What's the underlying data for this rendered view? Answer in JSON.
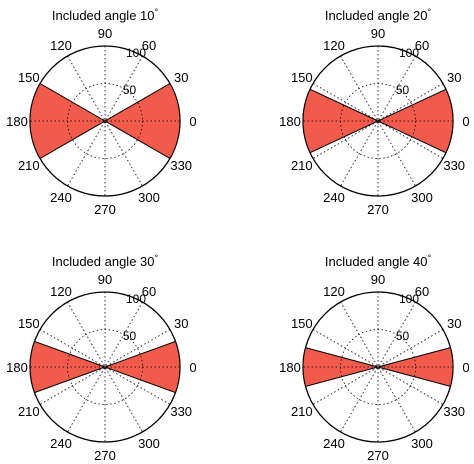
{
  "chart_data": [
    {
      "type": "polar-area",
      "title": "Included angle 10",
      "title_superscript": "°",
      "angle_ticks": [
        "0",
        "30",
        "60",
        "90",
        "120",
        "150",
        "180",
        "210",
        "240",
        "270",
        "300",
        "330"
      ],
      "radial_ticks": [
        "50",
        "100"
      ],
      "rlim": [
        0,
        100
      ],
      "grid": true,
      "fill_color": "#f25a4b",
      "half_width_deg": 30,
      "lobe_centers_deg": [
        0,
        180
      ],
      "values": [
        100,
        100
      ]
    },
    {
      "type": "polar-area",
      "title": "Included angle 20",
      "title_superscript": "°",
      "angle_ticks": [
        "0",
        "30",
        "60",
        "90",
        "120",
        "150",
        "180",
        "210",
        "240",
        "270",
        "300",
        "330"
      ],
      "radial_ticks": [
        "50",
        "100"
      ],
      "rlim": [
        0,
        100
      ],
      "grid": true,
      "fill_color": "#f25a4b",
      "half_width_deg": 25,
      "lobe_centers_deg": [
        0,
        180
      ],
      "values": [
        100,
        100
      ]
    },
    {
      "type": "polar-area",
      "title": "Included angle 30",
      "title_superscript": "°",
      "angle_ticks": [
        "0",
        "30",
        "60",
        "90",
        "120",
        "150",
        "180",
        "210",
        "240",
        "270",
        "300",
        "330"
      ],
      "radial_ticks": [
        "50",
        "100"
      ],
      "rlim": [
        0,
        100
      ],
      "grid": true,
      "fill_color": "#f25a4b",
      "half_width_deg": 20,
      "lobe_centers_deg": [
        0,
        180
      ],
      "values": [
        100,
        100
      ]
    },
    {
      "type": "polar-area",
      "title": "Included angle 40",
      "title_superscript": "°",
      "angle_ticks": [
        "0",
        "30",
        "60",
        "90",
        "120",
        "150",
        "180",
        "210",
        "240",
        "270",
        "300",
        "330"
      ],
      "radial_ticks": [
        "50",
        "100"
      ],
      "rlim": [
        0,
        100
      ],
      "grid": true,
      "fill_color": "#f25a4b",
      "half_width_deg": 15,
      "lobe_centers_deg": [
        0,
        180
      ],
      "values": [
        100,
        100
      ]
    }
  ]
}
